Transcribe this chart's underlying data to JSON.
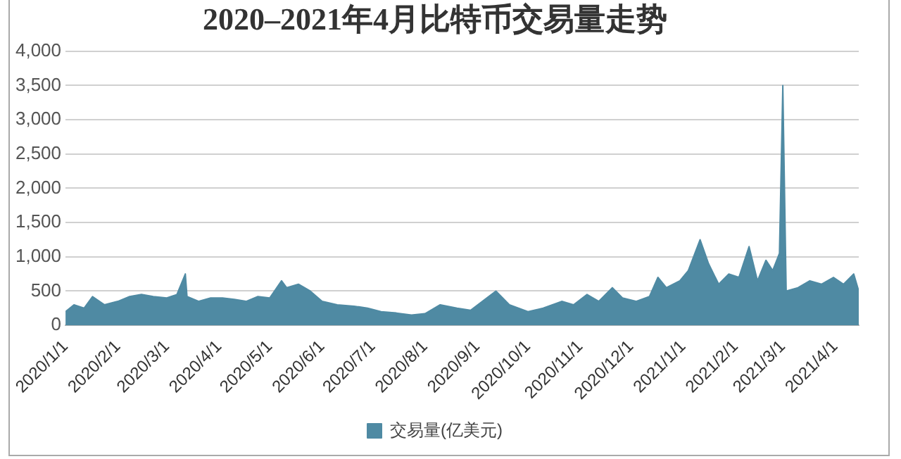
{
  "chart_data": {
    "type": "area",
    "title": "2020–2021年4月比特币交易量走势",
    "x": [
      "2020-01-01",
      "2020-01-06",
      "2020-01-12",
      "2020-01-17",
      "2020-01-24",
      "2020-02-01",
      "2020-02-08",
      "2020-02-15",
      "2020-02-22",
      "2020-03-01",
      "2020-03-07",
      "2020-03-12",
      "2020-03-13",
      "2020-03-20",
      "2020-03-27",
      "2020-04-03",
      "2020-04-10",
      "2020-04-17",
      "2020-04-24",
      "2020-05-01",
      "2020-05-08",
      "2020-05-11",
      "2020-05-18",
      "2020-05-25",
      "2020-06-01",
      "2020-06-10",
      "2020-06-20",
      "2020-06-28",
      "2020-07-06",
      "2020-07-15",
      "2020-07-24",
      "2020-08-01",
      "2020-08-10",
      "2020-08-20",
      "2020-08-28",
      "2020-09-04",
      "2020-09-12",
      "2020-09-20",
      "2020-10-01",
      "2020-10-10",
      "2020-10-21",
      "2020-10-28",
      "2020-11-05",
      "2020-11-12",
      "2020-11-20",
      "2020-11-26",
      "2020-12-04",
      "2020-12-12",
      "2020-12-17",
      "2020-12-22",
      "2020-12-30",
      "2021-01-04",
      "2021-01-11",
      "2021-01-16",
      "2021-01-22",
      "2021-01-28",
      "2021-02-03",
      "2021-02-09",
      "2021-02-14",
      "2021-02-19",
      "2021-02-23",
      "2021-02-27",
      "2021-03-01",
      "2021-03-03",
      "2021-03-10",
      "2021-03-17",
      "2021-03-24",
      "2021-03-31",
      "2021-04-06",
      "2021-04-12",
      "2021-04-15"
    ],
    "series": [
      {
        "name": "交易量(亿美元)",
        "color": "#4f8aa3",
        "values": [
          200,
          300,
          250,
          420,
          300,
          350,
          420,
          450,
          420,
          400,
          450,
          750,
          420,
          350,
          400,
          400,
          380,
          350,
          420,
          400,
          650,
          550,
          600,
          500,
          350,
          300,
          280,
          250,
          200,
          180,
          150,
          170,
          300,
          250,
          220,
          350,
          500,
          300,
          200,
          250,
          350,
          300,
          450,
          350,
          550,
          400,
          350,
          420,
          700,
          550,
          650,
          800,
          1250,
          900,
          600,
          750,
          700,
          1150,
          650,
          950,
          800,
          1050,
          3500,
          500,
          550,
          650,
          600,
          700,
          600,
          750,
          500
        ]
      }
    ],
    "xlim": [
      "2020-01-01",
      "2021-04-15"
    ],
    "xticks": [
      {
        "value": "2020-01-01",
        "label": "2020/1/1"
      },
      {
        "value": "2020-02-01",
        "label": "2020/2/1"
      },
      {
        "value": "2020-03-01",
        "label": "2020/3/1"
      },
      {
        "value": "2020-04-01",
        "label": "2020/4/1"
      },
      {
        "value": "2020-05-01",
        "label": "2020/5/1"
      },
      {
        "value": "2020-06-01",
        "label": "2020/6/1"
      },
      {
        "value": "2020-07-01",
        "label": "2020/7/1"
      },
      {
        "value": "2020-08-01",
        "label": "2020/8/1"
      },
      {
        "value": "2020-09-01",
        "label": "2020/9/1"
      },
      {
        "value": "2020-10-01",
        "label": "2020/10/1"
      },
      {
        "value": "2020-11-01",
        "label": "2020/11/1"
      },
      {
        "value": "2020-12-01",
        "label": "2020/12/1"
      },
      {
        "value": "2021-01-01",
        "label": "2021/1/1"
      },
      {
        "value": "2021-02-01",
        "label": "2021/2/1"
      },
      {
        "value": "2021-03-01",
        "label": "2021/3/1"
      },
      {
        "value": "2021-04-01",
        "label": "2021/4/1"
      }
    ],
    "ylim": [
      0,
      4000
    ],
    "yticks": [
      {
        "value": 0,
        "label": "0"
      },
      {
        "value": 500,
        "label": "500"
      },
      {
        "value": 1000,
        "label": "1,000"
      },
      {
        "value": 1500,
        "label": "1,500"
      },
      {
        "value": 2000,
        "label": "2,000"
      },
      {
        "value": 2500,
        "label": "2,500"
      },
      {
        "value": 3000,
        "label": "3,000"
      },
      {
        "value": 3500,
        "label": "3,500"
      },
      {
        "value": 4000,
        "label": "4,000"
      }
    ],
    "grid": "y",
    "legend": "bottom"
  }
}
